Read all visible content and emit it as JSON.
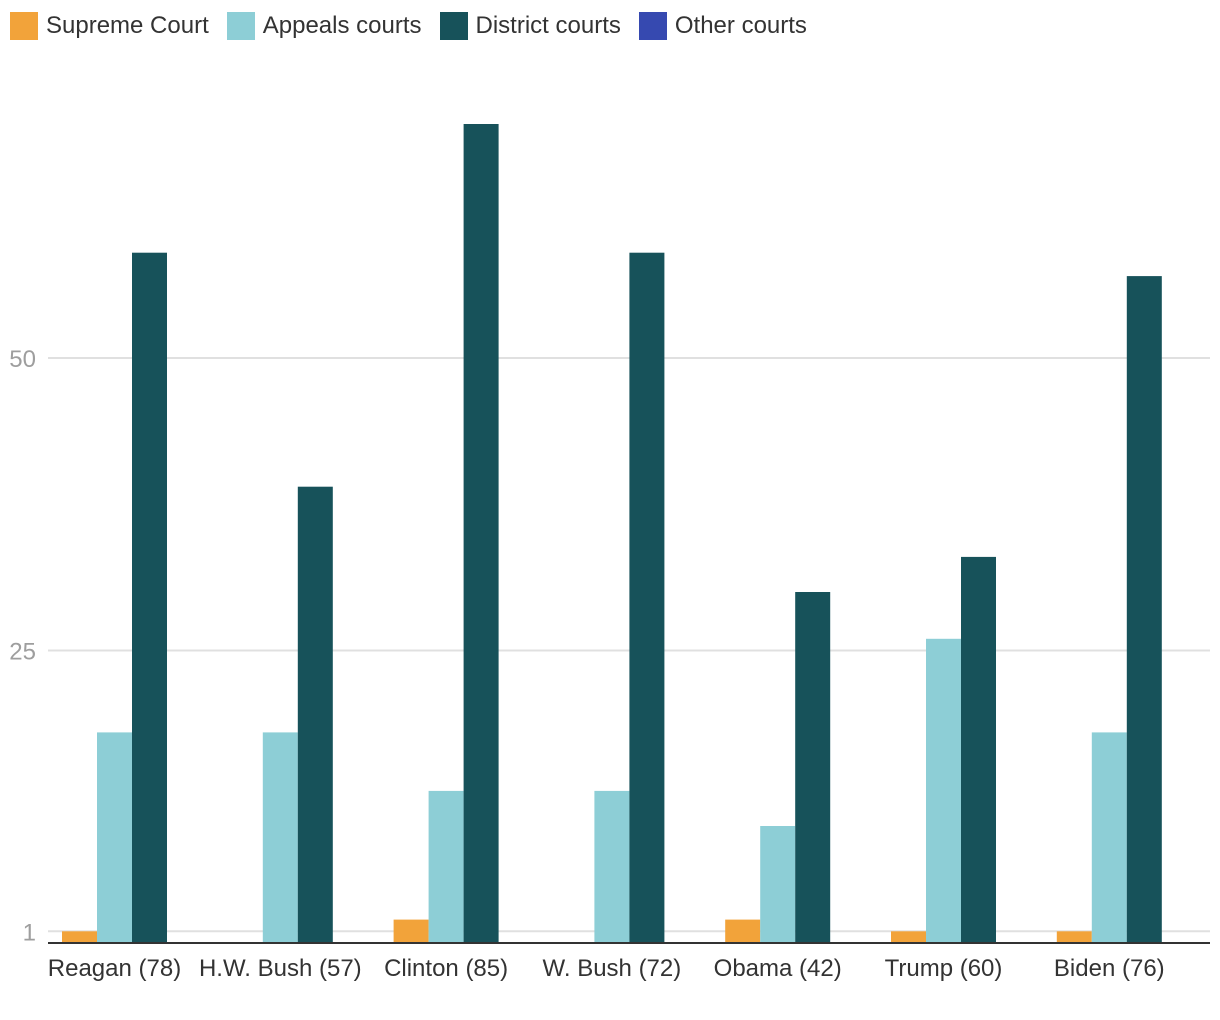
{
  "chart_data": {
    "type": "bar",
    "title": "",
    "xlabel": "",
    "ylabel": "",
    "categories": [
      "Reagan (78)",
      "H.W. Bush (57)",
      "Clinton (85)",
      "W. Bush (72)",
      "Obama (42)",
      "Trump (60)",
      "Biden (76)"
    ],
    "series": [
      {
        "name": "Supreme Court",
        "color": "#f2a33a",
        "values": [
          1,
          0,
          2,
          0,
          2,
          1,
          1
        ]
      },
      {
        "name": "Appeals courts",
        "color": "#8dced6",
        "values": [
          18,
          18,
          13,
          13,
          10,
          26,
          18
        ]
      },
      {
        "name": "District courts",
        "color": "#17525a",
        "values": [
          59,
          39,
          70,
          59,
          30,
          33,
          57
        ]
      },
      {
        "name": "Other courts",
        "color": "#3649b0",
        "values": [
          0,
          0,
          0,
          0,
          0,
          0,
          0
        ]
      }
    ],
    "yticks": [
      1,
      25,
      50
    ],
    "ylim": [
      0,
      70
    ],
    "grid": true,
    "legend_position": "top-left"
  }
}
